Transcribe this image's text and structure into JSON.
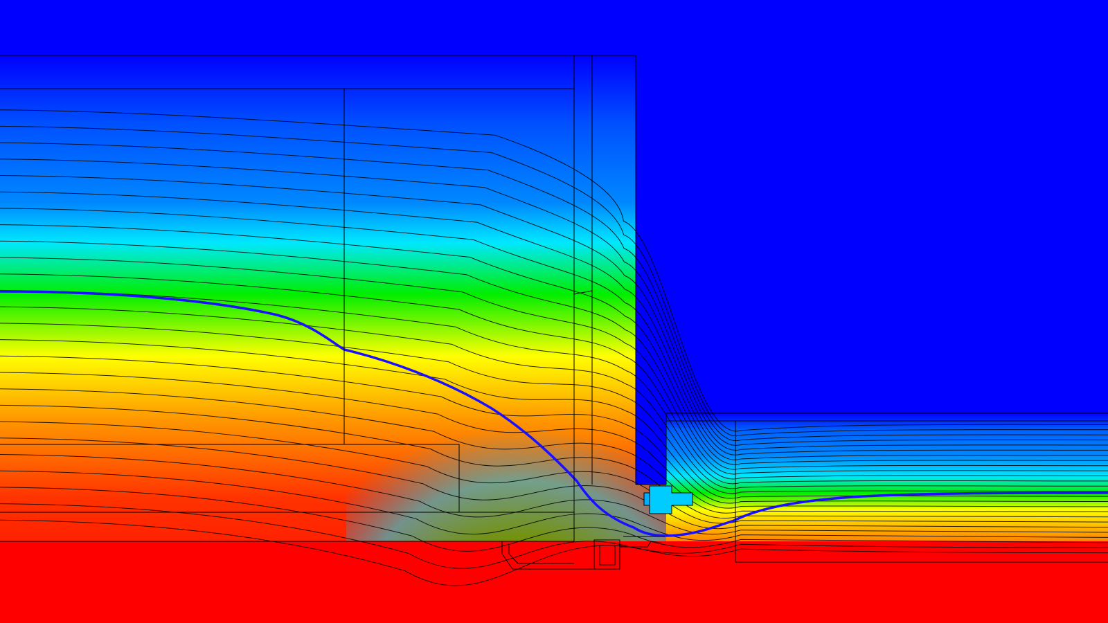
{
  "figure": {
    "kind": "thermal-simulation-isotherm-plot",
    "description_visible_text": "",
    "colormap": [
      "#0000ff",
      "#0088ff",
      "#00e8ff",
      "#00ee00",
      "#ffff00",
      "#ff9900",
      "#ff0000"
    ],
    "cold_color": "#0000ff",
    "warm_color": "#ff0000",
    "highlight_isotherm_color": "#1a10ff",
    "outline_color": "#000000",
    "isotherm_line_count": 26,
    "highlight_isotherm_level": 0.5,
    "regions": [
      {
        "name": "exterior-air",
        "temperature_level": 0.0
      },
      {
        "name": "interior-air",
        "temperature_level": 1.0
      },
      {
        "name": "wall-assembly",
        "temperature_level": null
      },
      {
        "name": "floor-slab",
        "temperature_level": null
      },
      {
        "name": "door-threshold",
        "temperature_level": null
      },
      {
        "name": "window-glazing-bead",
        "temperature_level": null
      }
    ]
  }
}
